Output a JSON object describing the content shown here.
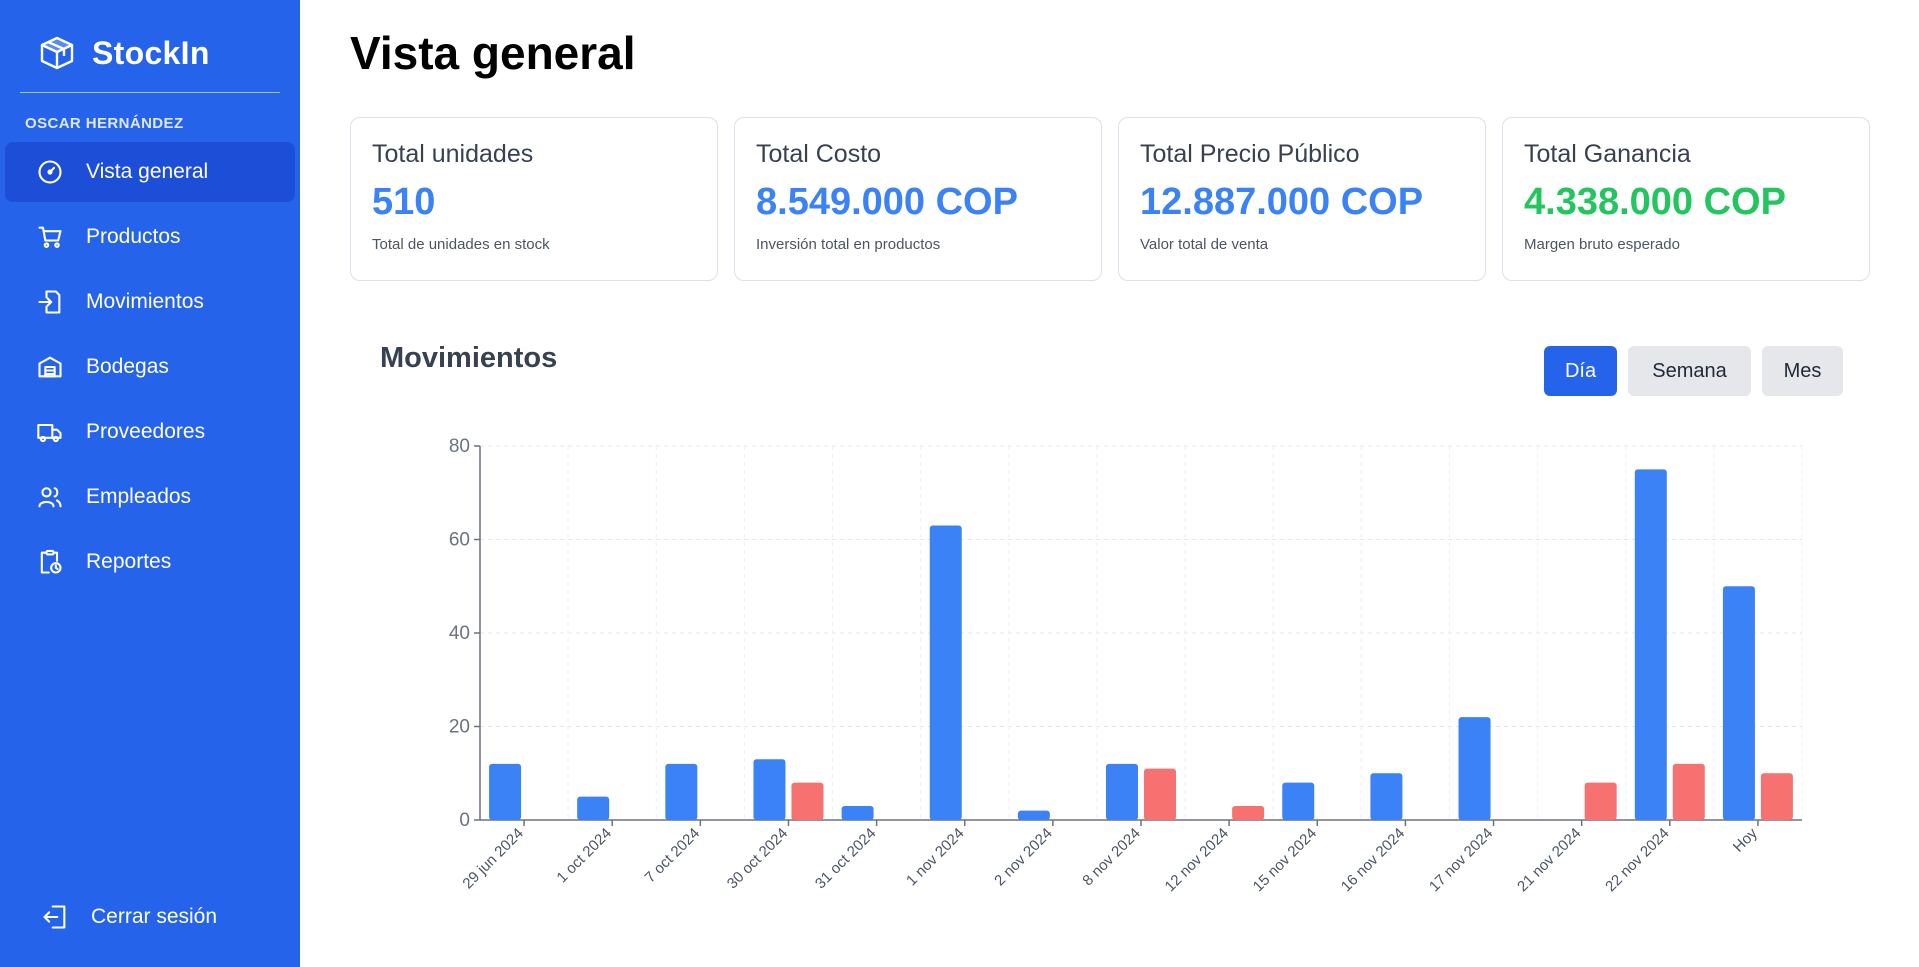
{
  "app": {
    "name": "StockIn"
  },
  "user": {
    "name": "OSCAR HERNÁNDEZ"
  },
  "nav": [
    {
      "label": "Vista general",
      "icon": "gauge-icon",
      "active": true
    },
    {
      "label": "Productos",
      "icon": "cart-icon"
    },
    {
      "label": "Movimientos",
      "icon": "import-icon"
    },
    {
      "label": "Bodegas",
      "icon": "warehouse-icon"
    },
    {
      "label": "Proveedores",
      "icon": "truck-icon"
    },
    {
      "label": "Empleados",
      "icon": "users-icon"
    },
    {
      "label": "Reportes",
      "icon": "clipboard-clock-icon"
    }
  ],
  "logout": {
    "label": "Cerrar sesión",
    "icon": "logout-icon"
  },
  "page": {
    "title": "Vista general"
  },
  "cards": [
    {
      "title": "Total unidades",
      "value": "510",
      "subtitle": "Total de unidades en stock",
      "color": "#3b82f6"
    },
    {
      "title": "Total Costo",
      "value": "8.549.000 COP",
      "subtitle": "Inversión total en productos",
      "color": "#3b82f6"
    },
    {
      "title": "Total Precio Público",
      "value": "12.887.000 COP",
      "subtitle": "Valor total de venta",
      "color": "#3b82f6"
    },
    {
      "title": "Total Ganancia",
      "value": "4.338.000 COP",
      "subtitle": "Margen bruto esperado",
      "color": "#22c55e"
    }
  ],
  "movements": {
    "title": "Movimientos",
    "ranges": [
      {
        "label": "Día",
        "active": true
      },
      {
        "label": "Semana",
        "active": false
      },
      {
        "label": "Mes",
        "active": false
      }
    ]
  },
  "chart_data": {
    "type": "bar",
    "categories": [
      "29 jun 2024",
      "1 oct 2024",
      "7 oct 2024",
      "30 oct 2024",
      "31 oct 2024",
      "1 nov 2024",
      "2 nov 2024",
      "8 nov 2024",
      "12 nov 2024",
      "15 nov 2024",
      "16 nov 2024",
      "17 nov 2024",
      "21 nov 2024",
      "22 nov 2024",
      "Hoy"
    ],
    "series": [
      {
        "values": [
          12,
          5,
          12,
          13,
          3,
          63,
          2,
          12,
          0,
          8,
          10,
          22,
          0,
          75,
          50
        ],
        "color": "#3b82f6"
      },
      {
        "values": [
          0,
          0,
          0,
          8,
          0,
          0,
          0,
          11,
          3,
          0,
          0,
          0,
          8,
          12,
          10
        ],
        "color": "#f87171"
      }
    ],
    "ylim": [
      0,
      80
    ],
    "yticks": [
      0,
      20,
      40,
      60,
      80
    ],
    "grid": true
  },
  "colors": {
    "sidebar": "#2563eb",
    "accent": "#3b82f6",
    "success": "#22c55e",
    "outflow": "#f87171"
  }
}
